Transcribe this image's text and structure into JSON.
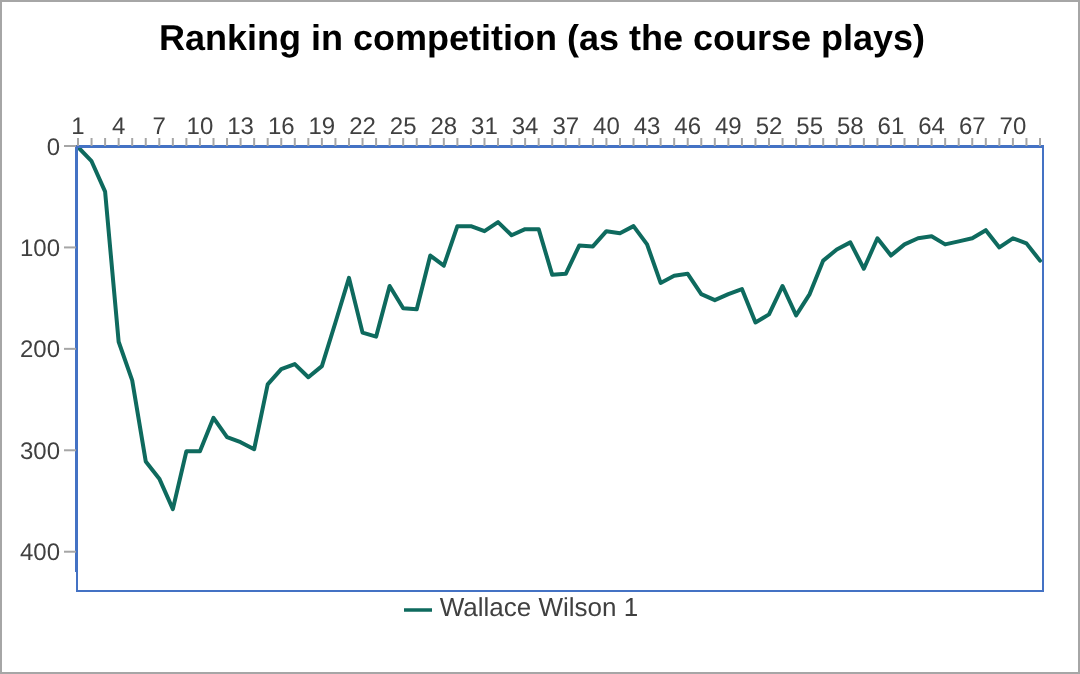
{
  "chart_data": {
    "type": "line",
    "title": "Ranking in competition (as the course plays)",
    "categories": [
      "1",
      null,
      null,
      "4",
      null,
      null,
      "7",
      null,
      null,
      "10",
      null,
      null,
      "13",
      null,
      null,
      "16",
      null,
      null,
      "19",
      null,
      null,
      "22",
      null,
      null,
      "25",
      null,
      null,
      "28",
      null,
      null,
      "31",
      null,
      null,
      "34",
      null,
      null,
      "37",
      null,
      null,
      "40",
      null,
      null,
      "43",
      null,
      null,
      "46",
      null,
      null,
      "49",
      null,
      null,
      "52",
      null,
      null,
      "55",
      null,
      null,
      "58",
      null,
      null,
      "61",
      null,
      null,
      "64",
      null,
      null,
      "67",
      null,
      null,
      "70",
      null,
      null
    ],
    "series": [
      {
        "name": "Wallace Wilson 1",
        "color": "#0e6a5e",
        "values": [
          1,
          15,
          45,
          193,
          231,
          311,
          328,
          358,
          301,
          301,
          268,
          287,
          292,
          299,
          235,
          220,
          215,
          228,
          217,
          174,
          130,
          184,
          188,
          138,
          160,
          161,
          108,
          118,
          79,
          79,
          84,
          75,
          88,
          82,
          82,
          127,
          126,
          98,
          99,
          84,
          86,
          79,
          97,
          135,
          128,
          126,
          146,
          152,
          146,
          141,
          174,
          166,
          138,
          167,
          146,
          113,
          102,
          95,
          121,
          91,
          108,
          97,
          91,
          89,
          97,
          94,
          91,
          83,
          100,
          91,
          96,
          113
        ]
      }
    ],
    "ylim": [
      420,
      0
    ],
    "yticks": [
      0,
      100,
      200,
      300,
      400
    ],
    "legend": "bottom",
    "marker": "none"
  }
}
